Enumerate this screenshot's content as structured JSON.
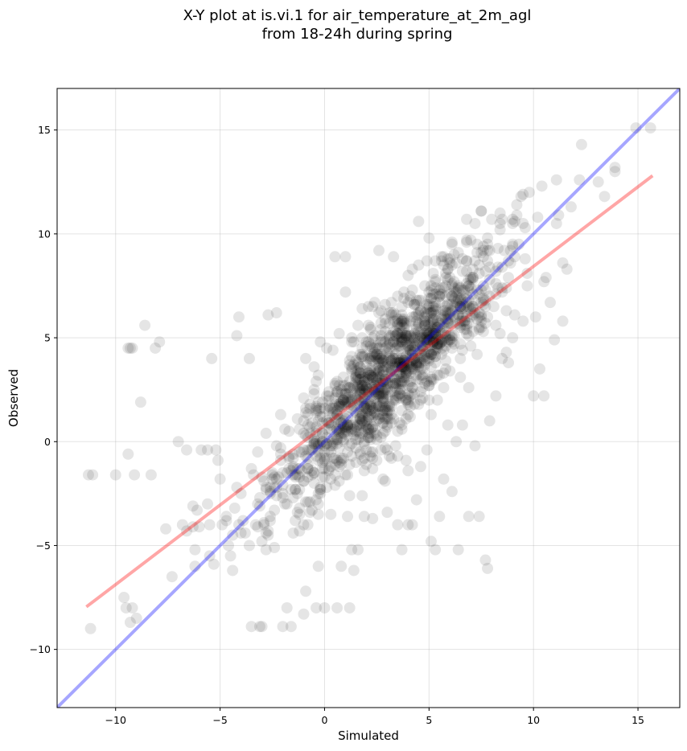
{
  "chart_data": {
    "type": "scatter",
    "title": "X-Y plot at is.vi.1 for air_temperature_at_2m_agl",
    "subtitle": "from 18-24h during spring",
    "xlabel": "Simulated",
    "ylabel": "Observed",
    "xlim": [
      -12.8,
      17.0
    ],
    "ylim": [
      -12.8,
      17.0
    ],
    "xticks": [
      -10,
      -5,
      0,
      5,
      10,
      15
    ],
    "yticks": [
      -10,
      -5,
      0,
      5,
      10,
      15
    ],
    "xtick_labels": [
      "−10",
      "−5",
      "0",
      "5",
      "10",
      "15"
    ],
    "ytick_labels": [
      "−10",
      "−5",
      "0",
      "5",
      "10",
      "15"
    ],
    "grid": true,
    "point_color": "#000000",
    "point_opacity": 0.1,
    "point_count": 1500,
    "points": [
      [
        -11.3,
        -1.6
      ],
      [
        -11.1,
        -1.6
      ],
      [
        -11.2,
        -9.0
      ],
      [
        -10.0,
        -1.6
      ],
      [
        -9.6,
        -7.5
      ],
      [
        -9.5,
        -8.0
      ],
      [
        -9.4,
        -0.6
      ],
      [
        -9.3,
        -8.7
      ],
      [
        -9.2,
        -8.0
      ],
      [
        -9.0,
        -8.5
      ],
      [
        -9.4,
        4.5
      ],
      [
        -9.3,
        4.5
      ],
      [
        -9.2,
        4.5
      ],
      [
        -9.1,
        -1.6
      ],
      [
        -8.8,
        1.9
      ],
      [
        -8.6,
        5.6
      ],
      [
        -8.3,
        -1.6
      ],
      [
        -8.1,
        4.5
      ],
      [
        -7.9,
        4.8
      ],
      [
        -7.6,
        -4.2
      ],
      [
        -7.3,
        -6.5
      ],
      [
        -7.0,
        0.0
      ],
      [
        -6.8,
        -4.0
      ],
      [
        -6.6,
        -4.3
      ],
      [
        -6.6,
        -0.4
      ],
      [
        -6.3,
        -4.1
      ],
      [
        -6.2,
        -6.0
      ],
      [
        -6.2,
        -5.2
      ],
      [
        -6.1,
        -3.3
      ],
      [
        -5.9,
        -0.4
      ],
      [
        -5.6,
        -3.0
      ],
      [
        -5.6,
        -0.4
      ],
      [
        -5.4,
        4.0
      ],
      [
        -5.2,
        -0.4
      ],
      [
        -5.1,
        -0.9
      ],
      [
        -5.0,
        -1.8
      ],
      [
        -4.9,
        -4.0
      ],
      [
        -4.7,
        -3.6
      ],
      [
        -4.6,
        -5.0
      ],
      [
        -4.5,
        -5.5
      ],
      [
        -4.4,
        -6.2
      ],
      [
        -4.3,
        -3.2
      ],
      [
        -4.2,
        5.1
      ],
      [
        -4.1,
        6.0
      ],
      [
        -4.0,
        -2.5
      ],
      [
        -3.9,
        -3.8
      ],
      [
        -3.8,
        -4.4
      ],
      [
        -3.6,
        4.0
      ],
      [
        -3.5,
        -8.9
      ],
      [
        -3.4,
        -1.6
      ],
      [
        -3.2,
        -3.0
      ],
      [
        -3.1,
        -8.9
      ],
      [
        -3.0,
        -8.9
      ],
      [
        -2.9,
        -4.0
      ],
      [
        -2.7,
        6.1
      ],
      [
        -2.6,
        -2.2
      ],
      [
        -2.5,
        -1.5
      ],
      [
        -2.4,
        -5.1
      ],
      [
        -2.3,
        6.2
      ],
      [
        -2.1,
        1.3
      ],
      [
        -2.0,
        -8.9
      ],
      [
        -1.8,
        -8.0
      ],
      [
        -1.6,
        -8.9
      ],
      [
        -1.5,
        -0.8
      ],
      [
        -1.3,
        -2.5
      ],
      [
        -1.2,
        -4.3
      ],
      [
        -1.0,
        -8.3
      ],
      [
        -0.9,
        -7.2
      ],
      [
        -0.8,
        -4.0
      ],
      [
        -0.6,
        -1.6
      ],
      [
        -0.4,
        -8.0
      ],
      [
        -0.3,
        -6.0
      ],
      [
        -0.2,
        4.8
      ],
      [
        0.0,
        -8.0
      ],
      [
        0.1,
        4.5
      ],
      [
        0.3,
        -3.5
      ],
      [
        0.5,
        8.9
      ],
      [
        0.6,
        -8.0
      ],
      [
        0.8,
        -6.0
      ],
      [
        1.0,
        8.9
      ],
      [
        1.1,
        -3.6
      ],
      [
        1.2,
        -8.0
      ],
      [
        1.3,
        -5.2
      ],
      [
        1.4,
        -6.2
      ],
      [
        1.6,
        -5.2
      ],
      [
        1.8,
        -2.6
      ],
      [
        1.9,
        -3.6
      ],
      [
        2.1,
        6.5
      ],
      [
        2.3,
        -1.3
      ],
      [
        2.6,
        9.2
      ],
      [
        2.8,
        -1.8
      ],
      [
        3.0,
        -3.4
      ],
      [
        3.1,
        -0.7
      ],
      [
        3.3,
        8.9
      ],
      [
        3.5,
        -4.0
      ],
      [
        3.7,
        -5.2
      ],
      [
        3.9,
        -0.9
      ],
      [
        4.0,
        -4.0
      ],
      [
        4.2,
        -4.0
      ],
      [
        4.4,
        -2.8
      ],
      [
        4.6,
        -1.2
      ],
      [
        4.9,
        -0.4
      ],
      [
        5.1,
        -4.8
      ],
      [
        5.3,
        -5.2
      ],
      [
        5.5,
        -3.6
      ],
      [
        5.7,
        -1.8
      ],
      [
        5.9,
        0.8
      ],
      [
        6.1,
        -2.4
      ],
      [
        6.4,
        -5.2
      ],
      [
        6.6,
        0.8
      ],
      [
        6.9,
        -3.6
      ],
      [
        7.2,
        -0.2
      ],
      [
        7.4,
        -3.6
      ],
      [
        7.7,
        -5.7
      ],
      [
        7.8,
        -6.1
      ],
      [
        7.9,
        1.0
      ],
      [
        8.2,
        2.2
      ],
      [
        8.5,
        4.0
      ],
      [
        8.8,
        3.8
      ],
      [
        9.0,
        5.0
      ],
      [
        9.2,
        11.4
      ],
      [
        9.5,
        5.8
      ],
      [
        9.8,
        12.0
      ],
      [
        10.0,
        2.2
      ],
      [
        10.1,
        6.0
      ],
      [
        10.3,
        3.5
      ],
      [
        10.5,
        2.2
      ],
      [
        10.6,
        7.9
      ],
      [
        10.8,
        6.7
      ],
      [
        11.0,
        4.9
      ],
      [
        11.2,
        10.9
      ],
      [
        11.4,
        5.8
      ],
      [
        11.6,
        8.3
      ],
      [
        11.8,
        11.3
      ],
      [
        13.9,
        13.2
      ],
      [
        13.9,
        13.0
      ],
      [
        14.9,
        15.1
      ],
      [
        15.6,
        15.1
      ]
    ],
    "cloud": {
      "n": 1360,
      "center_x": 3.2,
      "center_y": 3.4,
      "slope": 1.0,
      "sd_x": 3.6,
      "sd_resid": 1.55
    },
    "lines": [
      {
        "name": "",
        "color": "#0000ff",
        "opacity": 0.35,
        "x": [
          -12.8,
          17.0
        ],
        "y": [
          -12.8,
          17.0
        ]
      },
      {
        "name": "",
        "color": "#ff0000",
        "opacity": 0.35,
        "x": [
          -11.4,
          15.7
        ],
        "y": [
          -7.95,
          12.8
        ]
      }
    ]
  }
}
